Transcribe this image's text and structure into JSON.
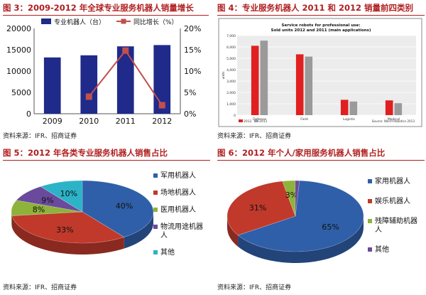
{
  "panels": {
    "p3": {
      "title": "图 3：2009-2012 年全球专业服务机器人销量增长",
      "source": "资料来源：IFR、招商证券"
    },
    "p4": {
      "title": "图 4：专业服务机器人 2011 和 2012 销量前四类别",
      "source": "资料来源：IFR、招商证券"
    },
    "p5": {
      "title": "图 5：2012 年各类专业服务机器人销售占比",
      "source": "资料来源：IFR、招商证券"
    },
    "p6": {
      "title": "图 6：2012 年个人/家用服务机器人销售占比",
      "source": "资料来源：IFR、招商证券"
    }
  },
  "chart_data": [
    {
      "type": "bar",
      "title": "",
      "categories": [
        "2009",
        "2010",
        "2011",
        "2012"
      ],
      "series": [
        {
          "name": "专业机器人（台）",
          "axis": "left",
          "type": "bar",
          "color": "#1f2a8a",
          "values": [
            13200,
            13700,
            15800,
            16100
          ]
        },
        {
          "name": "同比增长（%）",
          "axis": "right",
          "type": "line",
          "color": "#c0504d",
          "values": [
            null,
            4,
            14.8,
            2
          ],
          "labels": [
            null,
            "",
            "14.8%",
            ""
          ]
        }
      ],
      "ylim_left": [
        0,
        20000
      ],
      "yticks_left": [
        "0",
        "5000",
        "10000",
        "15000",
        "20000"
      ],
      "ylim_right": [
        0,
        20
      ],
      "yticks_right": [
        "0%",
        "5%",
        "10%",
        "15%",
        "20%"
      ],
      "legend": "top"
    },
    {
      "type": "bar",
      "title": "Service robots for professional use. Sold units 2012 and 2011 (main applications)",
      "categories": [
        "Defence",
        "Field",
        "Logistic",
        "Medical"
      ],
      "series": [
        {
          "name": "2012",
          "color": "#e02020",
          "values": [
            6100,
            5350,
            1350,
            1300
          ]
        },
        {
          "name": "2011",
          "color": "#9a9a9a",
          "values": [
            6550,
            5150,
            1200,
            1050
          ]
        }
      ],
      "ylim": [
        0,
        7000
      ],
      "yticks": [
        "0",
        "1,000",
        "2,000",
        "3,000",
        "4,000",
        "5,000",
        "6,000",
        "7,000"
      ],
      "ylabel": "units",
      "source_note": "Source: World Robotics 2013",
      "legend": "bottom-left"
    },
    {
      "type": "pie",
      "title": "",
      "slices": [
        {
          "name": "军用机器人",
          "value": 40,
          "label": "40%",
          "color": "#2f5fa8"
        },
        {
          "name": "场地机器人",
          "value": 33,
          "label": "33%",
          "color": "#c0392b"
        },
        {
          "name": "医用机器人",
          "value": 8,
          "label": "8%",
          "color": "#8db33a"
        },
        {
          "name": "物流用途机器人",
          "value": 9,
          "label": "9%",
          "color": "#6a4a9c"
        },
        {
          "name": "其他",
          "value": 10,
          "label": "10%",
          "color": "#2cb3c8"
        }
      ],
      "legend": "right"
    },
    {
      "type": "pie",
      "title": "",
      "slices": [
        {
          "name": "家用机器人",
          "value": 65,
          "label": "65%",
          "color": "#2f5fa8"
        },
        {
          "name": "娱乐机器人",
          "value": 31,
          "label": "31%",
          "color": "#c0392b"
        },
        {
          "name": "残障辅助机器人",
          "value": 3,
          "label": "3%",
          "color": "#8db33a"
        },
        {
          "name": "其他",
          "value": 1,
          "label": "",
          "color": "#6a4a9c"
        }
      ],
      "legend": "right"
    }
  ]
}
